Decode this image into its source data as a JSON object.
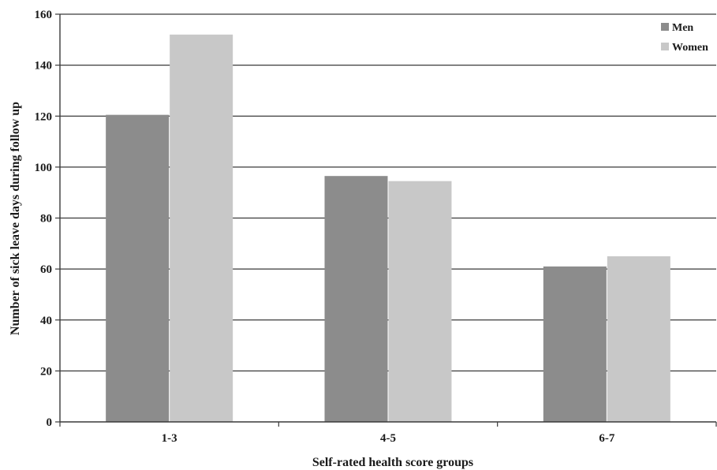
{
  "chart_data": {
    "type": "bar",
    "title": "",
    "xlabel": "Self-rated health score groups",
    "ylabel": "Number of sick leave days during follow up",
    "categories": [
      "1-3",
      "4-5",
      "6-7"
    ],
    "ylim": [
      0,
      160
    ],
    "yticks": [
      0,
      20,
      40,
      60,
      80,
      100,
      120,
      140,
      160
    ],
    "ytick_labels": [
      "0",
      "20",
      "40",
      "60",
      "80",
      "100",
      "120",
      "140",
      "160"
    ],
    "grid": true,
    "legend_position": "top-right",
    "series": [
      {
        "name": "Men",
        "color": "#8c8c8c",
        "values": [
          120.5,
          96.5,
          61
        ]
      },
      {
        "name": "Women",
        "color": "#c8c8c8",
        "values": [
          152,
          94.5,
          65
        ]
      }
    ]
  }
}
